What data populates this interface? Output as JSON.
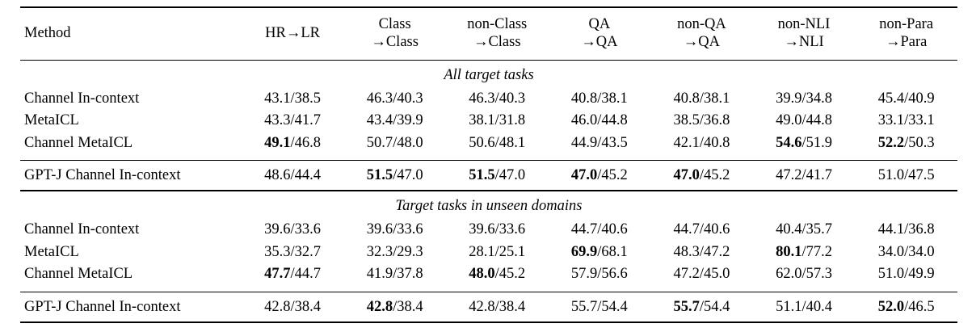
{
  "page": {
    "background": "#ffffff",
    "text_color": "#000000"
  },
  "table": {
    "header": [
      {
        "lines": [
          "Method"
        ],
        "align": "left"
      },
      {
        "lines": [
          "HR→LR"
        ]
      },
      {
        "lines": [
          "Class",
          "→Class"
        ]
      },
      {
        "lines": [
          "non-Class",
          "→Class"
        ]
      },
      {
        "lines": [
          "QA",
          "→QA"
        ]
      },
      {
        "lines": [
          "non-QA",
          "→QA"
        ]
      },
      {
        "lines": [
          "non-NLI",
          "→NLI"
        ]
      },
      {
        "lines": [
          "non-Para",
          "→Para"
        ]
      }
    ],
    "sections": [
      {
        "title": "All target tasks",
        "rows": [
          {
            "method": "Channel In-context",
            "cells": [
              {
                "a": "43.1",
                "b": "38.5",
                "boldA": false
              },
              {
                "a": "46.3",
                "b": "40.3",
                "boldA": false
              },
              {
                "a": "46.3",
                "b": "40.3",
                "boldA": false
              },
              {
                "a": "40.8",
                "b": "38.1",
                "boldA": false
              },
              {
                "a": "40.8",
                "b": "38.1",
                "boldA": false
              },
              {
                "a": "39.9",
                "b": "34.8",
                "boldA": false
              },
              {
                "a": "45.4",
                "b": "40.9",
                "boldA": false
              }
            ]
          },
          {
            "method": "MetaICL",
            "cells": [
              {
                "a": "43.3",
                "b": "41.7",
                "boldA": false
              },
              {
                "a": "43.4",
                "b": "39.9",
                "boldA": false
              },
              {
                "a": "38.1",
                "b": "31.8",
                "boldA": false
              },
              {
                "a": "46.0",
                "b": "44.8",
                "boldA": false
              },
              {
                "a": "38.5",
                "b": "36.8",
                "boldA": false
              },
              {
                "a": "49.0",
                "b": "44.8",
                "boldA": false
              },
              {
                "a": "33.1",
                "b": "33.1",
                "boldA": false
              }
            ]
          },
          {
            "method": "Channel MetaICL",
            "cells": [
              {
                "a": "49.1",
                "b": "46.8",
                "boldA": true
              },
              {
                "a": "50.7",
                "b": "48.0",
                "boldA": false
              },
              {
                "a": "50.6",
                "b": "48.1",
                "boldA": false
              },
              {
                "a": "44.9",
                "b": "43.5",
                "boldA": false
              },
              {
                "a": "42.1",
                "b": "40.8",
                "boldA": false
              },
              {
                "a": "54.6",
                "b": "51.9",
                "boldA": true
              },
              {
                "a": "52.2",
                "b": "50.3",
                "boldA": true
              }
            ]
          }
        ],
        "summary_row": {
          "method": "GPT-J Channel In-context",
          "cells": [
            {
              "a": "48.6",
              "b": "44.4",
              "boldA": false
            },
            {
              "a": "51.5",
              "b": "47.0",
              "boldA": true
            },
            {
              "a": "51.5",
              "b": "47.0",
              "boldA": true
            },
            {
              "a": "47.0",
              "b": "45.2",
              "boldA": true
            },
            {
              "a": "47.0",
              "b": "45.2",
              "boldA": true
            },
            {
              "a": "47.2",
              "b": "41.7",
              "boldA": false
            },
            {
              "a": "51.0",
              "b": "47.5",
              "boldA": false
            }
          ]
        }
      },
      {
        "title": "Target tasks in unseen domains",
        "rows": [
          {
            "method": "Channel In-context",
            "cells": [
              {
                "a": "39.6",
                "b": "33.6",
                "boldA": false
              },
              {
                "a": "39.6",
                "b": "33.6",
                "boldA": false
              },
              {
                "a": "39.6",
                "b": "33.6",
                "boldA": false
              },
              {
                "a": "44.7",
                "b": "40.6",
                "boldA": false
              },
              {
                "a": "44.7",
                "b": "40.6",
                "boldA": false
              },
              {
                "a": "40.4",
                "b": "35.7",
                "boldA": false
              },
              {
                "a": "44.1",
                "b": "36.8",
                "boldA": false
              }
            ]
          },
          {
            "method": "MetaICL",
            "cells": [
              {
                "a": "35.3",
                "b": "32.7",
                "boldA": false
              },
              {
                "a": "32.3",
                "b": "29.3",
                "boldA": false
              },
              {
                "a": "28.1",
                "b": "25.1",
                "boldA": false
              },
              {
                "a": "69.9",
                "b": "68.1",
                "boldA": true
              },
              {
                "a": "48.3",
                "b": "47.2",
                "boldA": false
              },
              {
                "a": "80.1",
                "b": "77.2",
                "boldA": true
              },
              {
                "a": "34.0",
                "b": "34.0",
                "boldA": false
              }
            ]
          },
          {
            "method": "Channel MetaICL",
            "cells": [
              {
                "a": "47.7",
                "b": "44.7",
                "boldA": true
              },
              {
                "a": "41.9",
                "b": "37.8",
                "boldA": false
              },
              {
                "a": "48.0",
                "b": "45.2",
                "boldA": true
              },
              {
                "a": "57.9",
                "b": "56.6",
                "boldA": false
              },
              {
                "a": "47.2",
                "b": "45.0",
                "boldA": false
              },
              {
                "a": "62.0",
                "b": "57.3",
                "boldA": false
              },
              {
                "a": "51.0",
                "b": "49.9",
                "boldA": false
              }
            ]
          }
        ],
        "summary_row": {
          "method": "GPT-J Channel In-context",
          "cells": [
            {
              "a": "42.8",
              "b": "38.4",
              "boldA": false
            },
            {
              "a": "42.8",
              "b": "38.4",
              "boldA": true
            },
            {
              "a": "42.8",
              "b": "38.4",
              "boldA": false
            },
            {
              "a": "55.7",
              "b": "54.4",
              "boldA": false
            },
            {
              "a": "55.7",
              "b": "54.4",
              "boldA": true
            },
            {
              "a": "51.1",
              "b": "40.4",
              "boldA": false
            },
            {
              "a": "52.0",
              "b": "46.5",
              "boldA": true
            }
          ]
        }
      }
    ]
  }
}
